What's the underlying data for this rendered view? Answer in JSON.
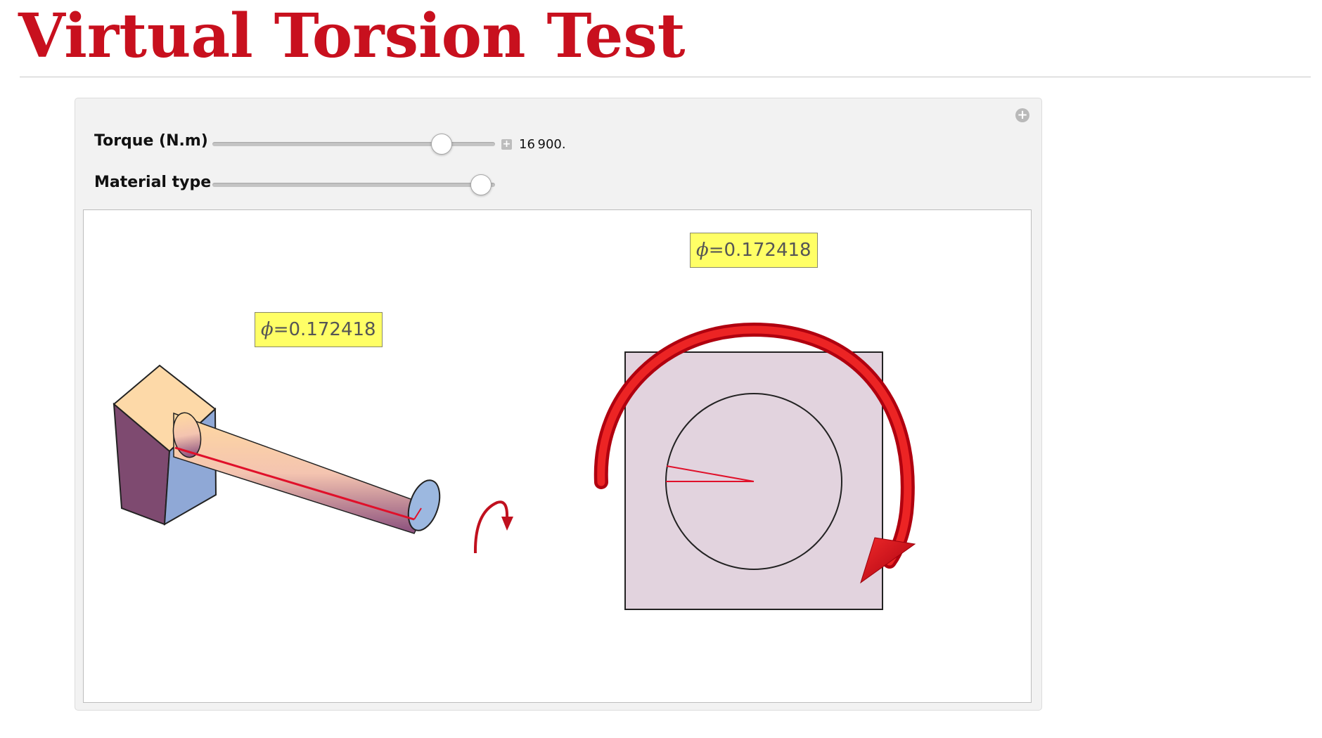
{
  "page": {
    "title": "Virtual Torsion Test"
  },
  "panel": {
    "expand_icon": "plus-circle-icon",
    "controls": {
      "torque": {
        "label": "Torque (N.m)",
        "value": "16 900.",
        "slider_fraction": 0.81
      },
      "material": {
        "label": "Material type",
        "slider_fraction": 0.95
      }
    }
  },
  "graphics": {
    "specimen_label": {
      "symbol": "ϕ",
      "text": "=0.172418"
    },
    "cross_section_label": {
      "symbol": "ϕ",
      "text": "=0.172418"
    },
    "colors": {
      "title": "#c8101e",
      "twist_line": "#e0102a",
      "arrow": "#d1101f",
      "label_bg": "#ffff66",
      "section_fill": "#e2d3de"
    }
  }
}
